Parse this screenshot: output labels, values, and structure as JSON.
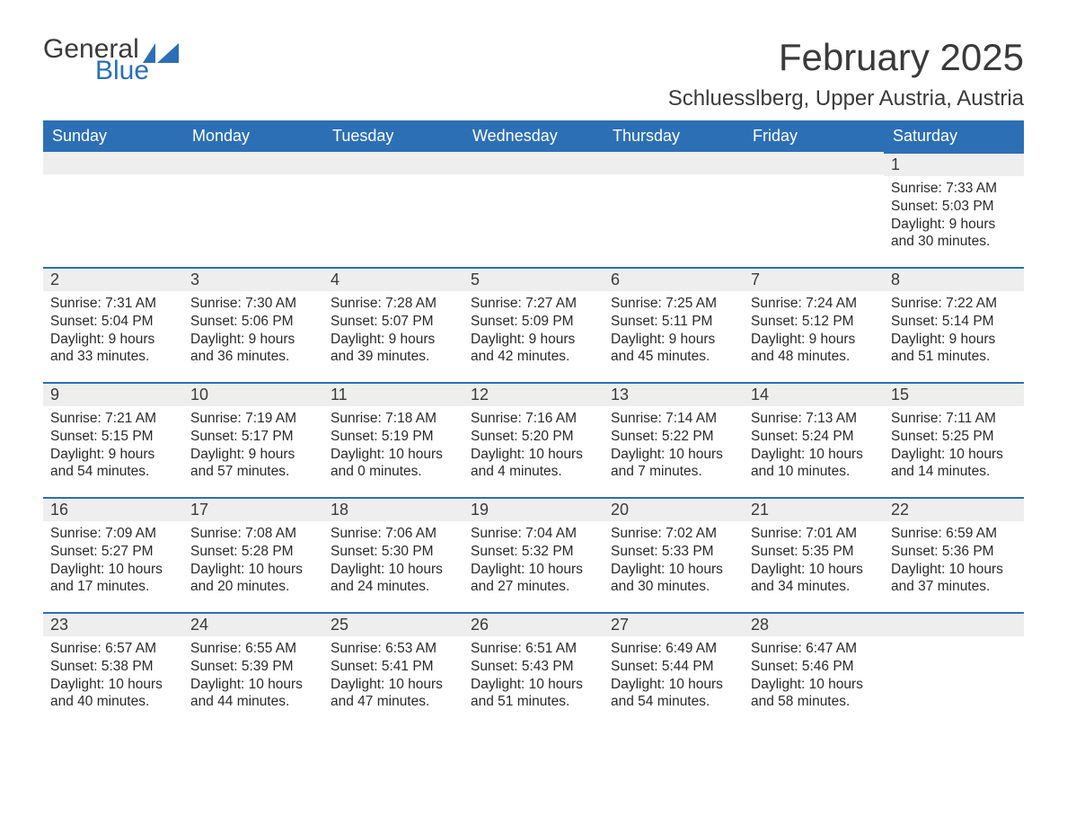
{
  "logo": {
    "line1": "General",
    "line2": "Blue"
  },
  "title": "February 2025",
  "location": "Schluesslberg, Upper Austria, Austria",
  "colors": {
    "header_bg": "#2c6fb5",
    "header_text": "#ffffff",
    "daynum_bg": "#eeeeee",
    "daynum_border": "#2c6fb5",
    "page_bg": "#ffffff",
    "text": "#2a2a2a"
  },
  "weekdays": [
    "Sunday",
    "Monday",
    "Tuesday",
    "Wednesday",
    "Thursday",
    "Friday",
    "Saturday"
  ],
  "weeks": [
    [
      {
        "n": "",
        "sr": "",
        "ss": "",
        "dl": ""
      },
      {
        "n": "",
        "sr": "",
        "ss": "",
        "dl": ""
      },
      {
        "n": "",
        "sr": "",
        "ss": "",
        "dl": ""
      },
      {
        "n": "",
        "sr": "",
        "ss": "",
        "dl": ""
      },
      {
        "n": "",
        "sr": "",
        "ss": "",
        "dl": ""
      },
      {
        "n": "",
        "sr": "",
        "ss": "",
        "dl": ""
      },
      {
        "n": "1",
        "sr": "Sunrise: 7:33 AM",
        "ss": "Sunset: 5:03 PM",
        "dl": "Daylight: 9 hours and 30 minutes."
      }
    ],
    [
      {
        "n": "2",
        "sr": "Sunrise: 7:31 AM",
        "ss": "Sunset: 5:04 PM",
        "dl": "Daylight: 9 hours and 33 minutes."
      },
      {
        "n": "3",
        "sr": "Sunrise: 7:30 AM",
        "ss": "Sunset: 5:06 PM",
        "dl": "Daylight: 9 hours and 36 minutes."
      },
      {
        "n": "4",
        "sr": "Sunrise: 7:28 AM",
        "ss": "Sunset: 5:07 PM",
        "dl": "Daylight: 9 hours and 39 minutes."
      },
      {
        "n": "5",
        "sr": "Sunrise: 7:27 AM",
        "ss": "Sunset: 5:09 PM",
        "dl": "Daylight: 9 hours and 42 minutes."
      },
      {
        "n": "6",
        "sr": "Sunrise: 7:25 AM",
        "ss": "Sunset: 5:11 PM",
        "dl": "Daylight: 9 hours and 45 minutes."
      },
      {
        "n": "7",
        "sr": "Sunrise: 7:24 AM",
        "ss": "Sunset: 5:12 PM",
        "dl": "Daylight: 9 hours and 48 minutes."
      },
      {
        "n": "8",
        "sr": "Sunrise: 7:22 AM",
        "ss": "Sunset: 5:14 PM",
        "dl": "Daylight: 9 hours and 51 minutes."
      }
    ],
    [
      {
        "n": "9",
        "sr": "Sunrise: 7:21 AM",
        "ss": "Sunset: 5:15 PM",
        "dl": "Daylight: 9 hours and 54 minutes."
      },
      {
        "n": "10",
        "sr": "Sunrise: 7:19 AM",
        "ss": "Sunset: 5:17 PM",
        "dl": "Daylight: 9 hours and 57 minutes."
      },
      {
        "n": "11",
        "sr": "Sunrise: 7:18 AM",
        "ss": "Sunset: 5:19 PM",
        "dl": "Daylight: 10 hours and 0 minutes."
      },
      {
        "n": "12",
        "sr": "Sunrise: 7:16 AM",
        "ss": "Sunset: 5:20 PM",
        "dl": "Daylight: 10 hours and 4 minutes."
      },
      {
        "n": "13",
        "sr": "Sunrise: 7:14 AM",
        "ss": "Sunset: 5:22 PM",
        "dl": "Daylight: 10 hours and 7 minutes."
      },
      {
        "n": "14",
        "sr": "Sunrise: 7:13 AM",
        "ss": "Sunset: 5:24 PM",
        "dl": "Daylight: 10 hours and 10 minutes."
      },
      {
        "n": "15",
        "sr": "Sunrise: 7:11 AM",
        "ss": "Sunset: 5:25 PM",
        "dl": "Daylight: 10 hours and 14 minutes."
      }
    ],
    [
      {
        "n": "16",
        "sr": "Sunrise: 7:09 AM",
        "ss": "Sunset: 5:27 PM",
        "dl": "Daylight: 10 hours and 17 minutes."
      },
      {
        "n": "17",
        "sr": "Sunrise: 7:08 AM",
        "ss": "Sunset: 5:28 PM",
        "dl": "Daylight: 10 hours and 20 minutes."
      },
      {
        "n": "18",
        "sr": "Sunrise: 7:06 AM",
        "ss": "Sunset: 5:30 PM",
        "dl": "Daylight: 10 hours and 24 minutes."
      },
      {
        "n": "19",
        "sr": "Sunrise: 7:04 AM",
        "ss": "Sunset: 5:32 PM",
        "dl": "Daylight: 10 hours and 27 minutes."
      },
      {
        "n": "20",
        "sr": "Sunrise: 7:02 AM",
        "ss": "Sunset: 5:33 PM",
        "dl": "Daylight: 10 hours and 30 minutes."
      },
      {
        "n": "21",
        "sr": "Sunrise: 7:01 AM",
        "ss": "Sunset: 5:35 PM",
        "dl": "Daylight: 10 hours and 34 minutes."
      },
      {
        "n": "22",
        "sr": "Sunrise: 6:59 AM",
        "ss": "Sunset: 5:36 PM",
        "dl": "Daylight: 10 hours and 37 minutes."
      }
    ],
    [
      {
        "n": "23",
        "sr": "Sunrise: 6:57 AM",
        "ss": "Sunset: 5:38 PM",
        "dl": "Daylight: 10 hours and 40 minutes."
      },
      {
        "n": "24",
        "sr": "Sunrise: 6:55 AM",
        "ss": "Sunset: 5:39 PM",
        "dl": "Daylight: 10 hours and 44 minutes."
      },
      {
        "n": "25",
        "sr": "Sunrise: 6:53 AM",
        "ss": "Sunset: 5:41 PM",
        "dl": "Daylight: 10 hours and 47 minutes."
      },
      {
        "n": "26",
        "sr": "Sunrise: 6:51 AM",
        "ss": "Sunset: 5:43 PM",
        "dl": "Daylight: 10 hours and 51 minutes."
      },
      {
        "n": "27",
        "sr": "Sunrise: 6:49 AM",
        "ss": "Sunset: 5:44 PM",
        "dl": "Daylight: 10 hours and 54 minutes."
      },
      {
        "n": "28",
        "sr": "Sunrise: 6:47 AM",
        "ss": "Sunset: 5:46 PM",
        "dl": "Daylight: 10 hours and 58 minutes."
      },
      {
        "n": "",
        "sr": "",
        "ss": "",
        "dl": ""
      }
    ]
  ]
}
